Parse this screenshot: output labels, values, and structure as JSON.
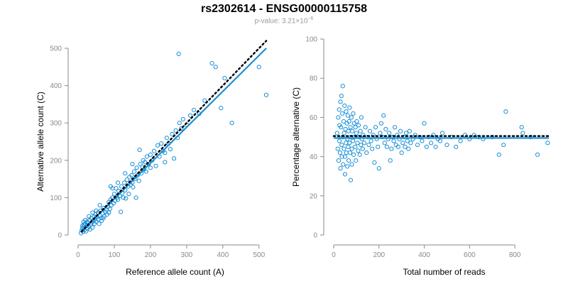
{
  "title": "rs2302614 - ENSG00000115758",
  "subtitle": {
    "prefix": "p-value: 3.21×10",
    "exponent": "−6"
  },
  "colors": {
    "points": "#1a8fd6",
    "fit_line": "#1a8fd6",
    "reference_line": "#000000",
    "axis": "#8a8a8a"
  },
  "chart_data": [
    {
      "type": "scatter",
      "xlabel": "Reference allele count (A)",
      "ylabel": "Alternative allele count (C)",
      "xlim": [
        0,
        520
      ],
      "ylim": [
        0,
        500
      ],
      "xticks": [
        "0",
        "100",
        "200",
        "300",
        "400",
        "500"
      ],
      "yticks": [
        "0",
        "100",
        "200",
        "300",
        "400",
        "500"
      ],
      "grid": false,
      "fit_line": {
        "x": [
          10,
          520
        ],
        "y": [
          10,
          500
        ]
      },
      "reference_line": {
        "style": "dotted",
        "x": [
          10,
          520
        ],
        "y": [
          10,
          520
        ]
      },
      "points": [
        [
          8,
          5
        ],
        [
          10,
          12
        ],
        [
          12,
          18
        ],
        [
          14,
          9
        ],
        [
          15,
          22
        ],
        [
          16,
          28
        ],
        [
          18,
          14
        ],
        [
          20,
          30
        ],
        [
          22,
          10
        ],
        [
          24,
          25
        ],
        [
          25,
          35
        ],
        [
          26,
          18
        ],
        [
          28,
          32
        ],
        [
          30,
          22
        ],
        [
          32,
          40
        ],
        [
          33,
          15
        ],
        [
          35,
          28
        ],
        [
          36,
          45
        ],
        [
          38,
          33
        ],
        [
          40,
          20
        ],
        [
          42,
          38
        ],
        [
          44,
          50
        ],
        [
          45,
          30
        ],
        [
          46,
          42
        ],
        [
          48,
          55
        ],
        [
          50,
          36
        ],
        [
          52,
          48
        ],
        [
          55,
          60
        ],
        [
          56,
          42
        ],
        [
          58,
          30
        ],
        [
          60,
          52
        ],
        [
          62,
          65
        ],
        [
          64,
          45
        ],
        [
          65,
          38
        ],
        [
          68,
          58
        ],
        [
          70,
          72
        ],
        [
          72,
          50
        ],
        [
          75,
          62
        ],
        [
          78,
          68
        ],
        [
          80,
          55
        ],
        [
          82,
          75
        ],
        [
          85,
          88
        ],
        [
          88,
          70
        ],
        [
          90,
          95
        ],
        [
          92,
          80
        ],
        [
          95,
          100
        ],
        [
          98,
          85
        ],
        [
          100,
          110
        ],
        [
          102,
          92
        ],
        [
          105,
          125
        ],
        [
          108,
          100
        ],
        [
          110,
          95
        ],
        [
          112,
          118
        ],
        [
          115,
          105
        ],
        [
          118,
          62
        ],
        [
          120,
          130
        ],
        [
          122,
          112
        ],
        [
          125,
          100
        ],
        [
          128,
          140
        ],
        [
          130,
          120
        ],
        [
          132,
          98
        ],
        [
          135,
          148
        ],
        [
          138,
          130
        ],
        [
          140,
          110
        ],
        [
          142,
          155
        ],
        [
          145,
          135
        ],
        [
          148,
          160
        ],
        [
          150,
          140
        ],
        [
          152,
          128
        ],
        [
          155,
          170
        ],
        [
          158,
          150
        ],
        [
          160,
          100
        ],
        [
          162,
          180
        ],
        [
          165,
          160
        ],
        [
          168,
          145
        ],
        [
          170,
          228
        ],
        [
          172,
          190
        ],
        [
          175,
          165
        ],
        [
          178,
          182
        ],
        [
          180,
          200
        ],
        [
          182,
          175
        ],
        [
          185,
          195
        ],
        [
          188,
          170
        ],
        [
          190,
          210
        ],
        [
          195,
          190
        ],
        [
          200,
          215
        ],
        [
          205,
          200
        ],
        [
          210,
          225
        ],
        [
          215,
          185
        ],
        [
          220,
          240
        ],
        [
          225,
          210
        ],
        [
          230,
          245
        ],
        [
          235,
          225
        ],
        [
          240,
          195
        ],
        [
          245,
          260
        ],
        [
          250,
          245
        ],
        [
          255,
          230
        ],
        [
          260,
          270
        ],
        [
          265,
          205
        ],
        [
          270,
          280
        ],
        [
          275,
          260
        ],
        [
          278,
          485
        ],
        [
          280,
          300
        ],
        [
          285,
          285
        ],
        [
          290,
          310
        ],
        [
          300,
          295
        ],
        [
          310,
          320
        ],
        [
          320,
          335
        ],
        [
          335,
          325
        ],
        [
          350,
          360
        ],
        [
          370,
          460
        ],
        [
          380,
          450
        ],
        [
          395,
          340
        ],
        [
          405,
          420
        ],
        [
          425,
          300
        ],
        [
          500,
          450
        ],
        [
          520,
          375
        ],
        [
          90,
          130
        ],
        [
          95,
          125
        ],
        [
          60,
          80
        ],
        [
          40,
          60
        ],
        [
          30,
          50
        ],
        [
          20,
          40
        ],
        [
          15,
          35
        ],
        [
          12,
          25
        ],
        [
          50,
          65
        ],
        [
          70,
          45
        ],
        [
          85,
          60
        ],
        [
          110,
          140
        ],
        [
          130,
          165
        ],
        [
          150,
          190
        ],
        [
          240,
          220
        ],
        [
          200,
          180
        ]
      ]
    },
    {
      "type": "scatter",
      "xlabel": "Total number of reads",
      "ylabel": "Percentage alternative (C)",
      "xlim": [
        0,
        950
      ],
      "ylim": [
        0,
        100
      ],
      "xticks": [
        "0",
        "200",
        "400",
        "600",
        "800"
      ],
      "yticks": [
        "0",
        "20",
        "40",
        "60",
        "80",
        "100"
      ],
      "grid": false,
      "fit_line": {
        "x": [
          0,
          950
        ],
        "y": [
          49.5,
          49.5
        ]
      },
      "reference_line": {
        "style": "dotted",
        "x": [
          0,
          950
        ],
        "y": [
          50.5,
          50.5
        ]
      },
      "points": [
        [
          15,
          52
        ],
        [
          18,
          44
        ],
        [
          20,
          60
        ],
        [
          22,
          38
        ],
        [
          24,
          64
        ],
        [
          25,
          48
        ],
        [
          26,
          56
        ],
        [
          28,
          42
        ],
        [
          30,
          68
        ],
        [
          30,
          34
        ],
        [
          32,
          55
        ],
        [
          34,
          71
        ],
        [
          35,
          46
        ],
        [
          36,
          40
        ],
        [
          38,
          62
        ],
        [
          40,
          50
        ],
        [
          40,
          76
        ],
        [
          42,
          36
        ],
        [
          44,
          58
        ],
        [
          45,
          44
        ],
        [
          46,
          52
        ],
        [
          48,
          66
        ],
        [
          50,
          40
        ],
        [
          50,
          31
        ],
        [
          52,
          54
        ],
        [
          54,
          47
        ],
        [
          55,
          63
        ],
        [
          56,
          42
        ],
        [
          58,
          57
        ],
        [
          60,
          49
        ],
        [
          60,
          35
        ],
        [
          62,
          61
        ],
        [
          64,
          45
        ],
        [
          65,
          53
        ],
        [
          66,
          38
        ],
        [
          68,
          58
        ],
        [
          70,
          47
        ],
        [
          70,
          65
        ],
        [
          72,
          42
        ],
        [
          74,
          55
        ],
        [
          75,
          28
        ],
        [
          76,
          50
        ],
        [
          78,
          60
        ],
        [
          80,
          44
        ],
        [
          80,
          36
        ],
        [
          82,
          53
        ],
        [
          85,
          48
        ],
        [
          86,
          62
        ],
        [
          88,
          41
        ],
        [
          90,
          57
        ],
        [
          92,
          50
        ],
        [
          95,
          45
        ],
        [
          96,
          55
        ],
        [
          98,
          38
        ],
        [
          100,
          52
        ],
        [
          102,
          58
        ],
        [
          105,
          47
        ],
        [
          108,
          43
        ],
        [
          110,
          56
        ],
        [
          112,
          50
        ],
        [
          115,
          41
        ],
        [
          118,
          53
        ],
        [
          120,
          46
        ],
        [
          122,
          60
        ],
        [
          125,
          49
        ],
        [
          128,
          44
        ],
        [
          130,
          51
        ],
        [
          135,
          47
        ],
        [
          140,
          55
        ],
        [
          145,
          42
        ],
        [
          150,
          50
        ],
        [
          155,
          46
        ],
        [
          160,
          53
        ],
        [
          165,
          48
        ],
        [
          170,
          44
        ],
        [
          175,
          51
        ],
        [
          180,
          37
        ],
        [
          185,
          55
        ],
        [
          190,
          49
        ],
        [
          195,
          45
        ],
        [
          200,
          34
        ],
        [
          205,
          52
        ],
        [
          210,
          57
        ],
        [
          215,
          50
        ],
        [
          220,
          61
        ],
        [
          225,
          47
        ],
        [
          230,
          54
        ],
        [
          235,
          45
        ],
        [
          240,
          49
        ],
        [
          245,
          52
        ],
        [
          250,
          38
        ],
        [
          255,
          44
        ],
        [
          260,
          50
        ],
        [
          265,
          48
        ],
        [
          270,
          55
        ],
        [
          275,
          46
        ],
        [
          280,
          51
        ],
        [
          285,
          45
        ],
        [
          290,
          49
        ],
        [
          295,
          53
        ],
        [
          300,
          42
        ],
        [
          305,
          47
        ],
        [
          310,
          50
        ],
        [
          315,
          45
        ],
        [
          320,
          52
        ],
        [
          325,
          48
        ],
        [
          330,
          44
        ],
        [
          335,
          53
        ],
        [
          340,
          47
        ],
        [
          350,
          49
        ],
        [
          360,
          51
        ],
        [
          370,
          46
        ],
        [
          380,
          50
        ],
        [
          390,
          48
        ],
        [
          400,
          57
        ],
        [
          410,
          45
        ],
        [
          420,
          50
        ],
        [
          430,
          47
        ],
        [
          440,
          51
        ],
        [
          450,
          45
        ],
        [
          460,
          49
        ],
        [
          470,
          48
        ],
        [
          480,
          52
        ],
        [
          500,
          46
        ],
        [
          520,
          50
        ],
        [
          540,
          45
        ],
        [
          560,
          48
        ],
        [
          580,
          51
        ],
        [
          600,
          49
        ],
        [
          620,
          51
        ],
        [
          640,
          50
        ],
        [
          660,
          49
        ],
        [
          700,
          50
        ],
        [
          730,
          41
        ],
        [
          750,
          46
        ],
        [
          760,
          63
        ],
        [
          830,
          55
        ],
        [
          835,
          52
        ],
        [
          870,
          50
        ],
        [
          900,
          41
        ],
        [
          945,
          47
        ]
      ]
    }
  ]
}
